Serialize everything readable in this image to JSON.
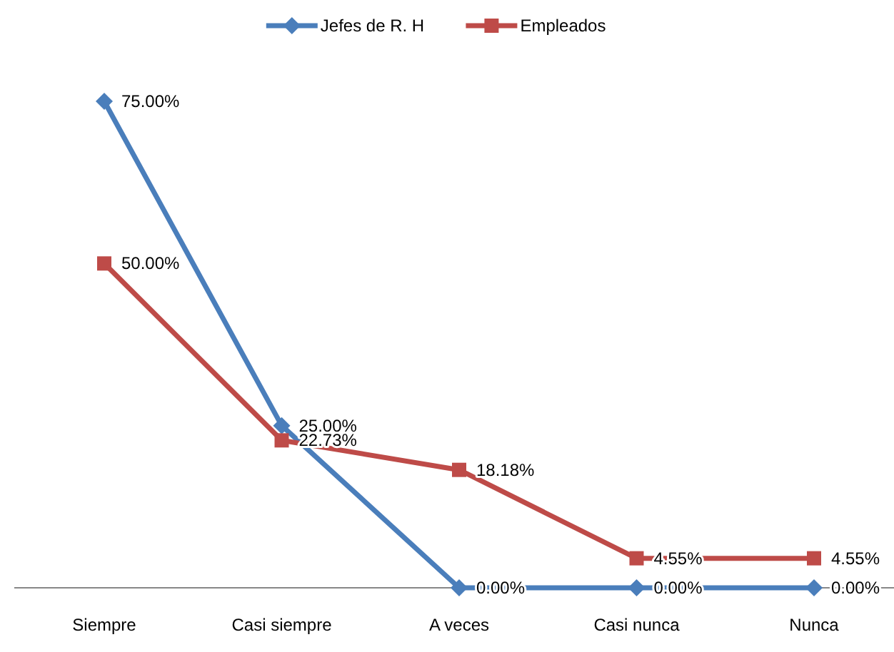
{
  "chart_data": {
    "type": "line",
    "categories": [
      "Siempre",
      "Casi siempre",
      "A veces",
      "Casi nunca",
      "Nunca"
    ],
    "legend": "top",
    "tick_labels": "x",
    "series": [
      {
        "name": "Jefes de R. H",
        "color": "#4a7ebb",
        "marker": "diamond",
        "values": [
          75,
          25,
          0,
          0,
          0
        ],
        "value_labels": [
          "75.00%",
          "25.00%",
          "0.00%",
          "0.00%",
          "0.00%"
        ]
      },
      {
        "name": "Empleados",
        "color": "#be4b48",
        "marker": "square",
        "values": [
          50,
          22.73,
          18.18,
          4.55,
          4.55
        ],
        "value_labels": [
          "50.00%",
          "22.73%",
          "18.18%",
          "4.55%",
          "4.55%"
        ]
      }
    ]
  }
}
